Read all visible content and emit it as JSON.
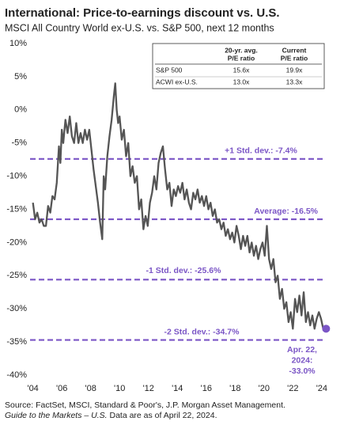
{
  "chart_data": {
    "type": "line",
    "title": "International: Price-to-earnings discount vs. U.S.",
    "subtitle": "MSCI All Country World ex-U.S. vs. S&P 500, next 12 months",
    "x": [
      2004.0,
      2004.15,
      2004.3,
      2004.45,
      2004.6,
      2004.75,
      2004.9,
      2005.05,
      2005.2,
      2005.35,
      2005.5,
      2005.65,
      2005.8,
      2005.9,
      2006.0,
      2006.1,
      2006.25,
      2006.4,
      2006.55,
      2006.7,
      2006.85,
      2007.0,
      2007.15,
      2007.3,
      2007.45,
      2007.6,
      2007.75,
      2007.9,
      2008.05,
      2008.2,
      2008.35,
      2008.5,
      2008.65,
      2008.8,
      2008.9,
      2009.0,
      2009.15,
      2009.3,
      2009.45,
      2009.6,
      2009.7,
      2009.8,
      2009.9,
      2010.0,
      2010.15,
      2010.3,
      2010.45,
      2010.6,
      2010.75,
      2010.9,
      2011.05,
      2011.2,
      2011.35,
      2011.5,
      2011.65,
      2011.8,
      2011.95,
      2012.1,
      2012.25,
      2012.4,
      2012.55,
      2012.7,
      2012.85,
      2013.0,
      2013.15,
      2013.3,
      2013.45,
      2013.6,
      2013.75,
      2013.9,
      2014.05,
      2014.2,
      2014.35,
      2014.5,
      2014.65,
      2014.8,
      2014.95,
      2015.1,
      2015.25,
      2015.4,
      2015.55,
      2015.7,
      2015.85,
      2016.0,
      2016.15,
      2016.3,
      2016.45,
      2016.6,
      2016.75,
      2016.9,
      2017.05,
      2017.2,
      2017.35,
      2017.5,
      2017.65,
      2017.8,
      2017.95,
      2018.1,
      2018.25,
      2018.4,
      2018.55,
      2018.7,
      2018.85,
      2019.0,
      2019.15,
      2019.3,
      2019.45,
      2019.6,
      2019.75,
      2019.9,
      2020.05,
      2020.2,
      2020.35,
      2020.5,
      2020.65,
      2020.8,
      2020.95,
      2021.1,
      2021.25,
      2021.4,
      2021.55,
      2021.7,
      2021.85,
      2022.0,
      2022.15,
      2022.3,
      2022.45,
      2022.6,
      2022.75,
      2022.9,
      2023.05,
      2023.2,
      2023.35,
      2023.5,
      2023.65,
      2023.8,
      2023.95,
      2024.1,
      2024.3
    ],
    "series": [
      {
        "color": "#555555",
        "values": [
          -14,
          -16.5,
          -15.5,
          -17,
          -16.5,
          -17.5,
          -17.5,
          -14.5,
          -15.5,
          -13,
          -13.5,
          -11,
          -5.5,
          -8,
          -3,
          -5,
          -1.5,
          -3.5,
          -1,
          -4,
          -5,
          -2,
          -5,
          -3.5,
          -5,
          -3,
          -4.5,
          -3,
          -6,
          -9,
          -11.5,
          -14,
          -17,
          -19.5,
          -10,
          -12,
          -7,
          -4,
          -1.5,
          2,
          4,
          0,
          -2,
          -1,
          -4.5,
          -3,
          -7,
          -5,
          -10,
          -8.5,
          -11,
          -10,
          -15,
          -13.5,
          -18,
          -16,
          -17.5,
          -14,
          -12.5,
          -10,
          -12,
          -8,
          -6.5,
          -5.5,
          -9,
          -12,
          -11,
          -14.5,
          -12,
          -13,
          -11.5,
          -12.5,
          -11,
          -13.5,
          -12,
          -14,
          -15,
          -12.5,
          -13.5,
          -12,
          -14,
          -13,
          -14.5,
          -13,
          -15,
          -14,
          -16,
          -15,
          -17,
          -16.5,
          -18,
          -17,
          -19,
          -18,
          -19.5,
          -18.5,
          -20,
          -17.5,
          -19,
          -21,
          -19,
          -20.5,
          -19,
          -21.5,
          -20,
          -22,
          -20.5,
          -22.5,
          -21,
          -20,
          -22,
          -17.5,
          -22.5,
          -24,
          -22.5,
          -26,
          -25,
          -28.5,
          -27,
          -30,
          -29,
          -32,
          -30.5,
          -33,
          -28.5,
          -30.5,
          -28,
          -31,
          -27.5,
          -32,
          -30.5,
          -32.5,
          -31,
          -33,
          -31.5,
          -30.5,
          -31.5,
          -33,
          -33.0
        ]
      }
    ],
    "end_point_color": "#7b56c6",
    "end_label": [
      "Apr. 22,",
      "2024:",
      "-33.0%"
    ],
    "reference_color": "#7b56c6",
    "reference_lines": [
      {
        "value": -7.4,
        "label": "+1 Std. dev.: -7.4%"
      },
      {
        "value": -16.5,
        "label": "Average: -16.5%"
      },
      {
        "value": -25.6,
        "label": "-1 Std. dev.: -25.6%"
      },
      {
        "value": -34.7,
        "label": "-2 Std. dev.: -34.7%"
      }
    ],
    "xlim": [
      2003.8,
      2024.5
    ],
    "xticks": [
      {
        "value": 2004,
        "label": "'04"
      },
      {
        "value": 2006,
        "label": "'06"
      },
      {
        "value": 2008,
        "label": "'08"
      },
      {
        "value": 2010,
        "label": "'10"
      },
      {
        "value": 2012,
        "label": "'12"
      },
      {
        "value": 2014,
        "label": "'14"
      },
      {
        "value": 2016,
        "label": "'16"
      },
      {
        "value": 2018,
        "label": "'18"
      },
      {
        "value": 2020,
        "label": "'20"
      },
      {
        "value": 2022,
        "label": "'22"
      },
      {
        "value": 2024,
        "label": "'24"
      }
    ],
    "ylim": [
      -40,
      10
    ],
    "yticks": [
      {
        "value": 10,
        "label": "10%"
      },
      {
        "value": 5,
        "label": "5%"
      },
      {
        "value": 0,
        "label": "0%"
      },
      {
        "value": -5,
        "label": "-5%"
      },
      {
        "value": -10,
        "label": "-10%"
      },
      {
        "value": -15,
        "label": "-15%"
      },
      {
        "value": -20,
        "label": "-20%"
      },
      {
        "value": -25,
        "label": "-25%"
      },
      {
        "value": -30,
        "label": "-30%"
      },
      {
        "value": -35,
        "label": "-35%"
      },
      {
        "value": -40,
        "label": "-40%"
      }
    ],
    "table": {
      "columns": [
        [
          "20-yr. avg.",
          "P/E ratio"
        ],
        [
          "Current",
          "P/E ratio"
        ]
      ],
      "rows": [
        [
          "S&P 500",
          "15.6x",
          "19.9x"
        ],
        [
          "ACWI ex-U.S.",
          "13.0x",
          "13.3x"
        ]
      ]
    },
    "source": "Source: FactSet, MSCI, Standard & Poor's, J.P. Morgan Asset Management.",
    "note": [
      "Guide to the Markets – U.S.",
      " Data are as of April 22, 2024."
    ]
  }
}
